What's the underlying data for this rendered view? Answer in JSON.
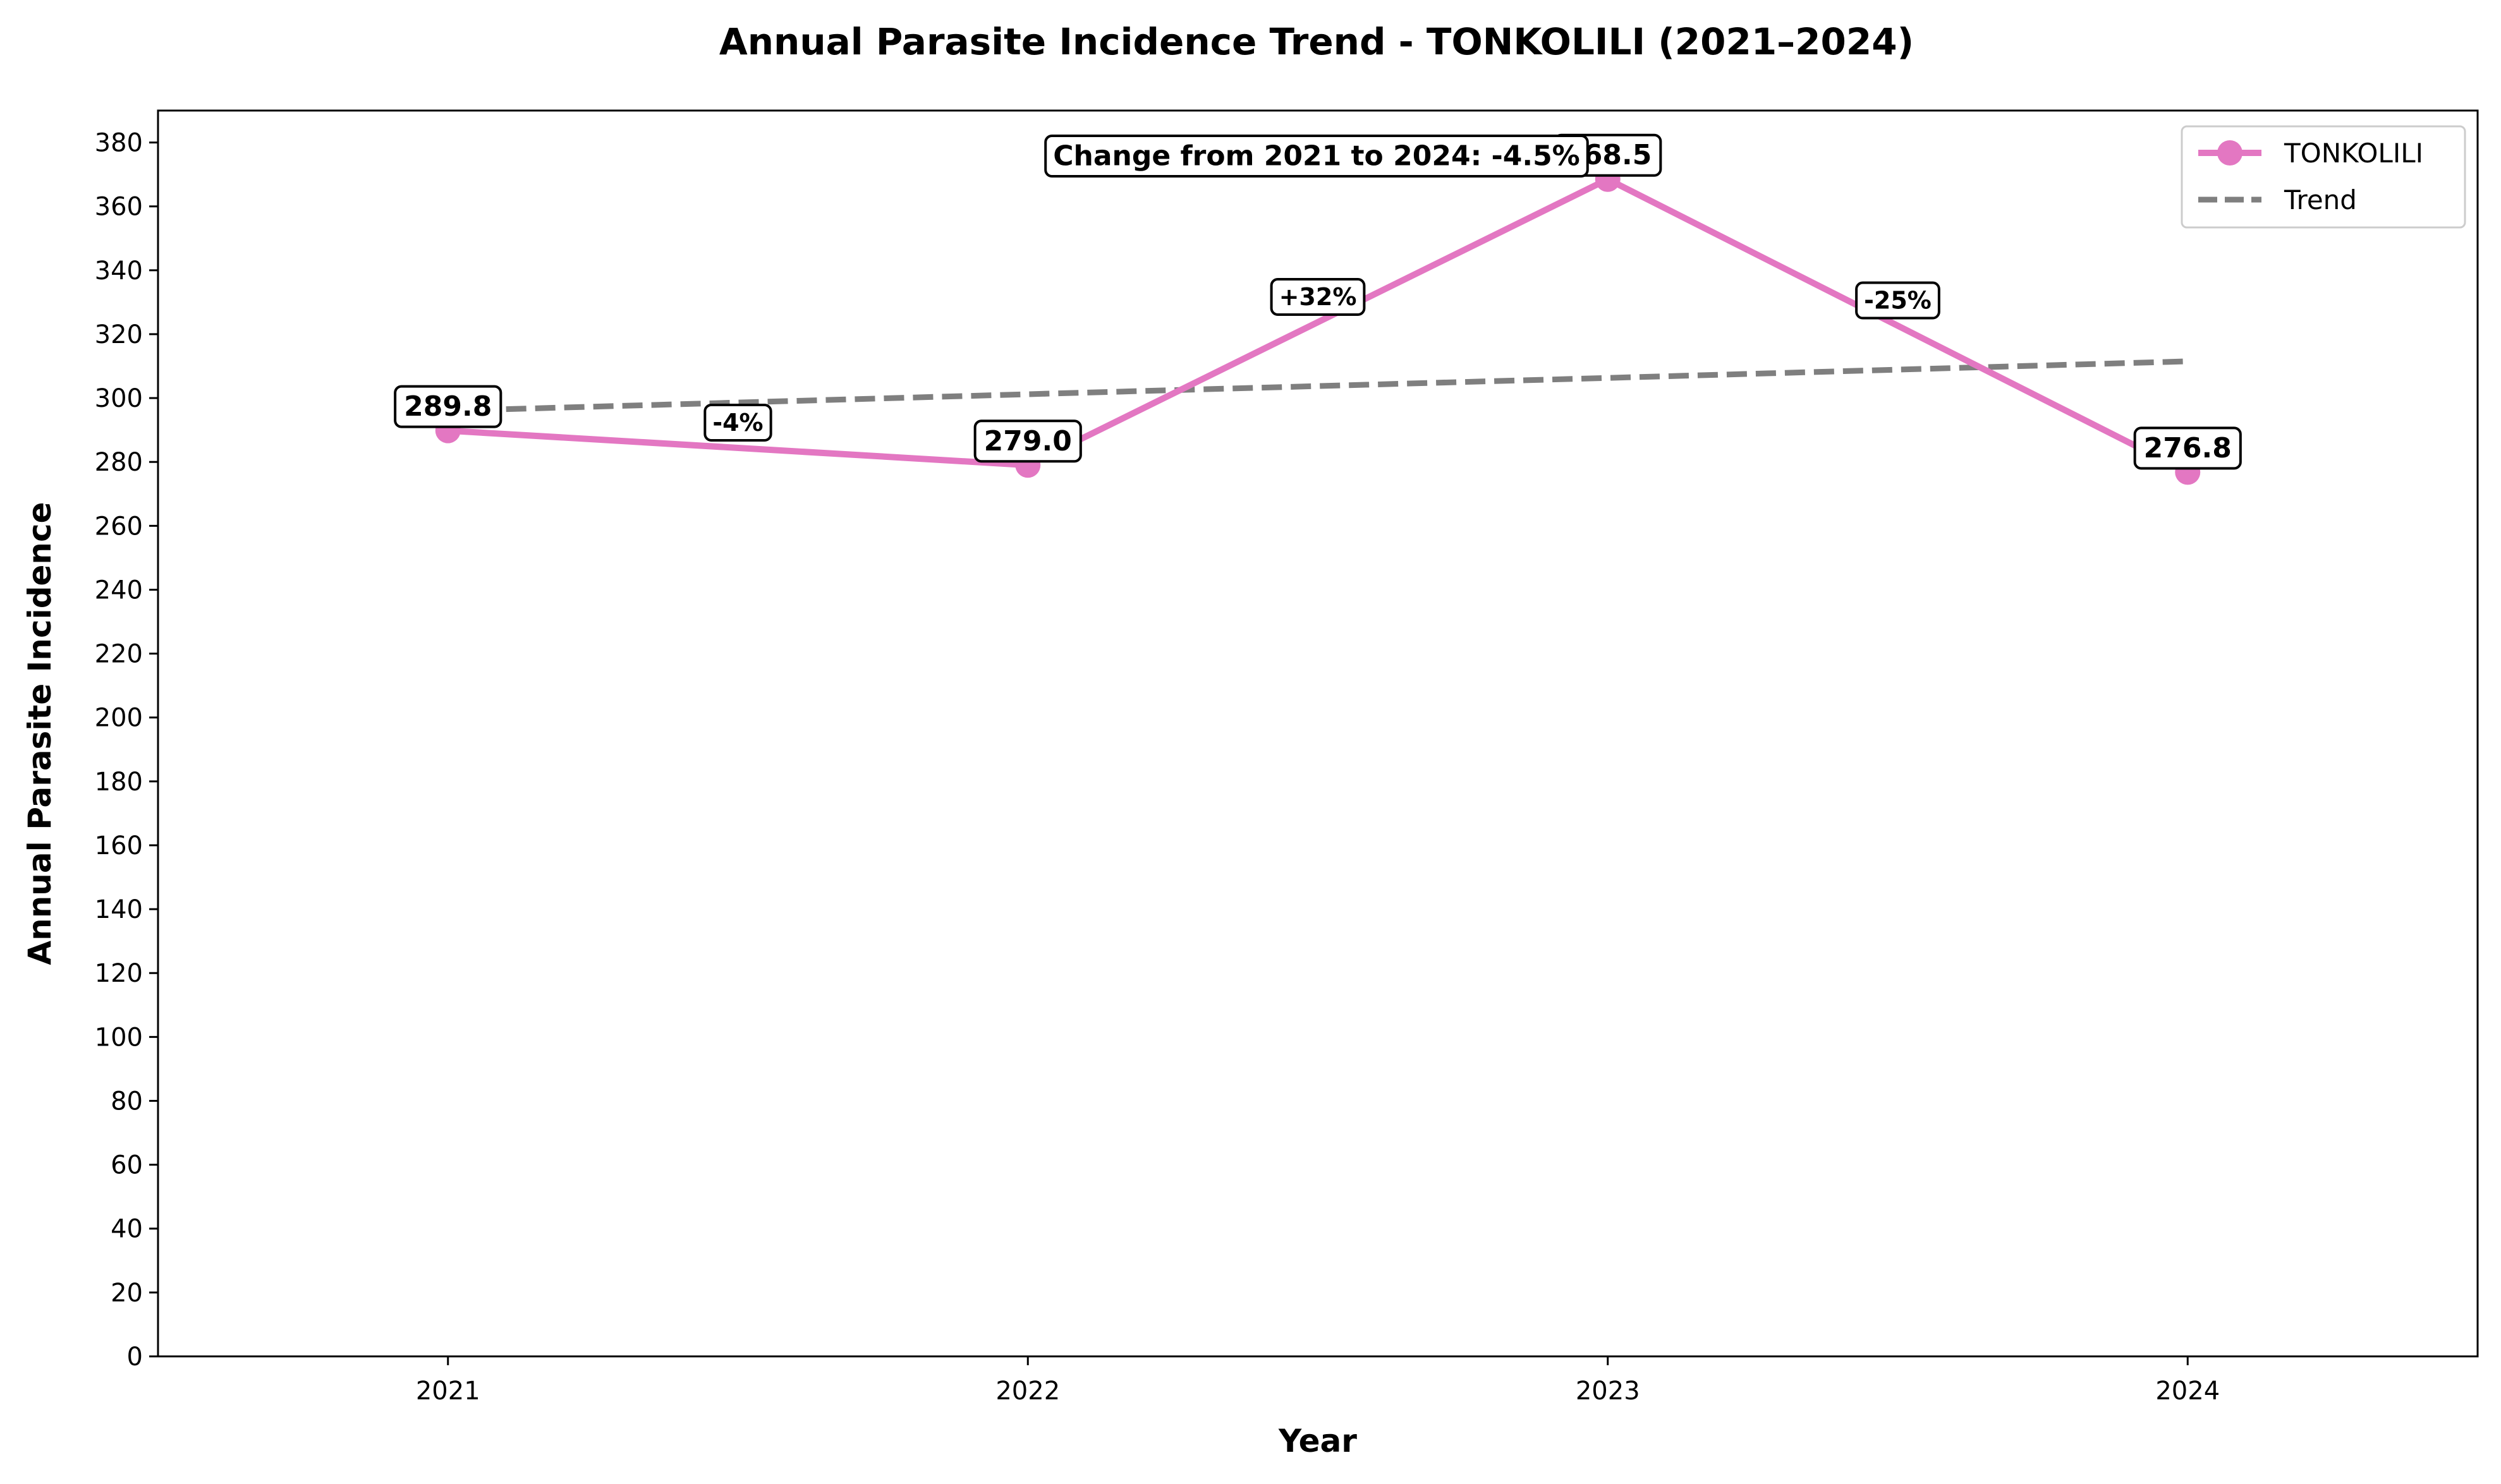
{
  "chart_data": {
    "type": "line",
    "title": "Annual Parasite Incidence Trend - TONKOLILI (2021–2024)",
    "xlabel": "Year",
    "ylabel": "Annual Parasite Incidence",
    "categories": [
      "2021",
      "2022",
      "2023",
      "2024"
    ],
    "x": [
      2021,
      2022,
      2023,
      2024
    ],
    "series": [
      {
        "name": "TONKOLILI",
        "values": [
          289.8,
          279.0,
          368.5,
          276.8
        ],
        "color": "#e377c2",
        "value_labels": [
          "289.8",
          "279.0",
          "368.5",
          "276.8"
        ]
      },
      {
        "name": "Trend",
        "values": [
          296.0,
          301.2,
          306.3,
          311.5
        ],
        "color": "#7f7f7f",
        "style": "dashed"
      }
    ],
    "segment_changes": [
      "-4%",
      "+32%",
      "-25%"
    ],
    "annotation": "Change from 2021 to 2024: -4.5%",
    "ylim": [
      0,
      390
    ],
    "xlim": [
      2020.5,
      2024.5
    ],
    "yticks": [
      0,
      20,
      40,
      60,
      80,
      100,
      120,
      140,
      160,
      180,
      200,
      220,
      240,
      260,
      280,
      300,
      320,
      340,
      360,
      380
    ],
    "grid": false,
    "legend_position": "top-right"
  }
}
